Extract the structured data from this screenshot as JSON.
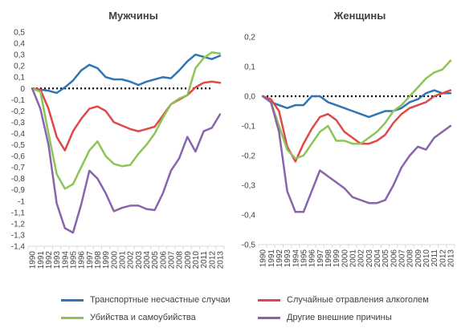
{
  "chart_data": [
    {
      "type": "line",
      "title": "Мужчины",
      "x": [
        "1990",
        "1991",
        "1992",
        "1993",
        "1994",
        "1995",
        "1996",
        "1997",
        "1998",
        "1999",
        "2000",
        "2001",
        "2002",
        "2003",
        "2004",
        "2005",
        "2006",
        "2007",
        "2008",
        "2009",
        "2010",
        "2011",
        "2012",
        "2013"
      ],
      "ylim": [
        -1.4,
        0.5
      ],
      "yticks": [
        "0,5",
        "0,4",
        "0,3",
        "0,2",
        "0,1",
        "0",
        "-0,1",
        "-0,2",
        "-0,3",
        "-0,4",
        "-0,5",
        "-0,6",
        "-0,7",
        "-0,8",
        "-0,9",
        "-1",
        "-1,1",
        "-1,2",
        "-1,3",
        "-1,4"
      ],
      "series": [
        {
          "name": "Транспортные несчастные случаи",
          "color": "#2E75B6",
          "values": [
            0,
            -0.01,
            -0.02,
            -0.04,
            0.01,
            0.07,
            0.16,
            0.21,
            0.18,
            0.1,
            0.08,
            0.08,
            0.06,
            0.03,
            0.06,
            0.08,
            0.1,
            0.09,
            0.16,
            0.24,
            0.3,
            0.28,
            0.26,
            0.29
          ]
        },
        {
          "name": "Случайные отравления алкоголем",
          "color": "#E04848",
          "values": [
            0,
            -0.01,
            -0.18,
            -0.43,
            -0.55,
            -0.38,
            -0.27,
            -0.18,
            -0.16,
            -0.2,
            -0.3,
            -0.33,
            -0.36,
            -0.38,
            -0.36,
            -0.34,
            -0.24,
            -0.14,
            -0.1,
            -0.06,
            0.01,
            0.05,
            0.06,
            0.05
          ]
        },
        {
          "name": "Убийства и самоубийства",
          "color": "#8DC456",
          "values": [
            0,
            -0.03,
            -0.4,
            -0.76,
            -0.89,
            -0.85,
            -0.7,
            -0.55,
            -0.47,
            -0.6,
            -0.67,
            -0.69,
            -0.68,
            -0.58,
            -0.5,
            -0.4,
            -0.26,
            -0.14,
            -0.09,
            -0.06,
            0.18,
            0.27,
            0.32,
            0.31
          ]
        },
        {
          "name": "Другие внешние причины",
          "color": "#8A63AD",
          "values": [
            0,
            -0.18,
            -0.5,
            -1.02,
            -1.24,
            -1.28,
            -1.03,
            -0.73,
            -0.8,
            -0.93,
            -1.09,
            -1.06,
            -1.04,
            -1.04,
            -1.07,
            -1.08,
            -0.93,
            -0.73,
            -0.62,
            -0.43,
            -0.56,
            -0.38,
            -0.35,
            -0.23
          ]
        }
      ]
    },
    {
      "type": "line",
      "title": "Женщины",
      "x": [
        "1990",
        "1991",
        "1992",
        "1993",
        "1994",
        "1995",
        "1996",
        "1997",
        "1998",
        "1999",
        "2000",
        "2001",
        "2002",
        "2003",
        "2004",
        "2005",
        "2006",
        "2007",
        "2008",
        "2009",
        "2010",
        "2011",
        "2012",
        "2013"
      ],
      "ylim": [
        -0.5,
        0.2
      ],
      "yticks": [
        "0,2",
        "0,1",
        "0,0",
        "-0,1",
        "-0,2",
        "-0,3",
        "-0,4",
        "-0,5"
      ],
      "series": [
        {
          "name": "Транспортные несчастные случаи",
          "color": "#2E75B6",
          "values": [
            0,
            -0.02,
            -0.03,
            -0.04,
            -0.03,
            -0.03,
            0,
            0,
            -0.02,
            -0.03,
            -0.04,
            -0.05,
            -0.06,
            -0.07,
            -0.06,
            -0.05,
            -0.05,
            -0.04,
            -0.02,
            -0.01,
            0.01,
            0.02,
            0.01,
            0.01
          ]
        },
        {
          "name": "Случайные отравления алкоголем",
          "color": "#E04848",
          "values": [
            0,
            -0.01,
            -0.05,
            -0.17,
            -0.22,
            -0.16,
            -0.11,
            -0.07,
            -0.06,
            -0.08,
            -0.12,
            -0.14,
            -0.16,
            -0.16,
            -0.15,
            -0.13,
            -0.09,
            -0.06,
            -0.04,
            -0.03,
            -0.02,
            0,
            0.01,
            0.02
          ]
        },
        {
          "name": "Убийства и самоубийства",
          "color": "#8DC456",
          "values": [
            0,
            -0.02,
            -0.1,
            -0.18,
            -0.21,
            -0.2,
            -0.16,
            -0.12,
            -0.1,
            -0.15,
            -0.15,
            -0.16,
            -0.16,
            -0.14,
            -0.12,
            -0.09,
            -0.05,
            -0.03,
            0,
            0.03,
            0.06,
            0.08,
            0.09,
            0.12
          ]
        },
        {
          "name": "Другие внешние причины",
          "color": "#8A63AD",
          "values": [
            0,
            -0.02,
            -0.12,
            -0.32,
            -0.39,
            -0.39,
            -0.32,
            -0.25,
            -0.27,
            -0.29,
            -0.31,
            -0.34,
            -0.35,
            -0.36,
            -0.36,
            -0.35,
            -0.3,
            -0.24,
            -0.2,
            -0.17,
            -0.18,
            -0.14,
            -0.12,
            -0.1
          ]
        }
      ]
    }
  ],
  "legend": [
    {
      "label": "Транспортные несчастные случаи",
      "color": "#2E75B6"
    },
    {
      "label": "Случайные отравления алкоголем",
      "color": "#E04848"
    },
    {
      "label": "Убийства и самоубийства",
      "color": "#8DC456"
    },
    {
      "label": "Другие внешние причины",
      "color": "#8A63AD"
    }
  ]
}
